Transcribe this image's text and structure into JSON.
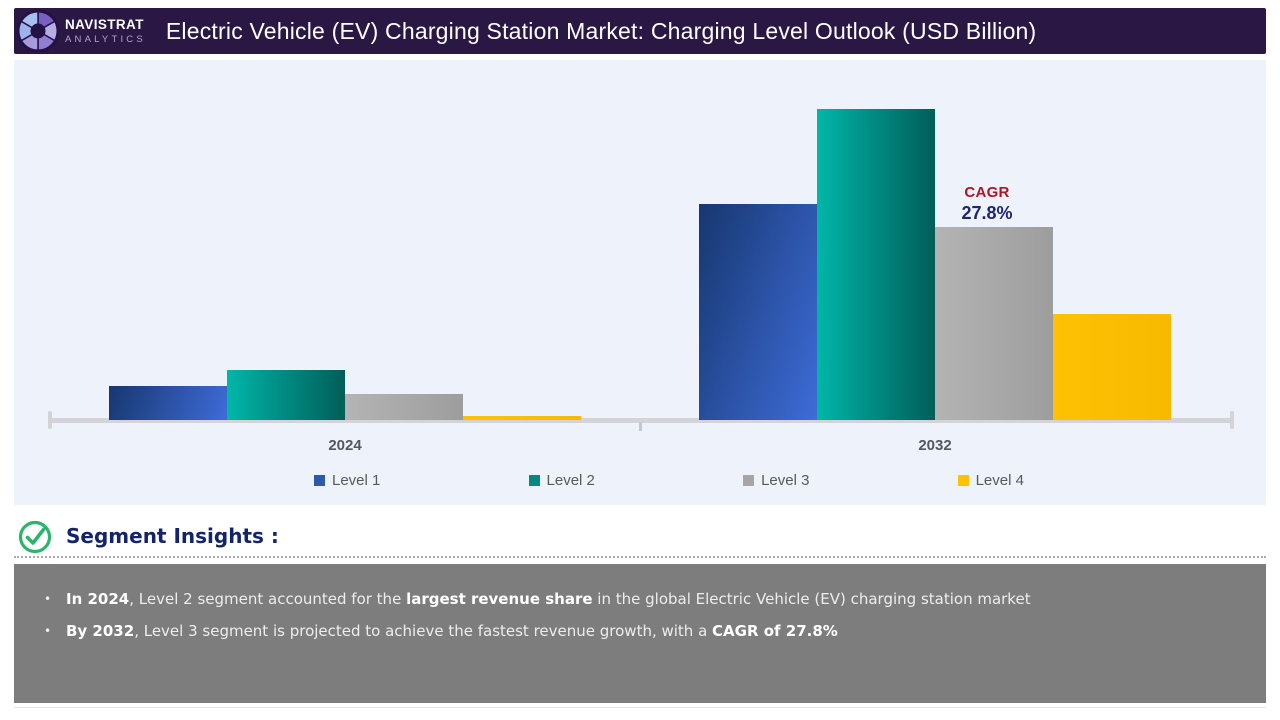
{
  "header": {
    "brand_name": "NAVISTRAT",
    "brand_tagline": "ANALYTICS",
    "title": "Electric Vehicle (EV) Charging Station Market: Charging Level Outlook (USD Billion)",
    "bg_color": "#2b1743"
  },
  "chart_data": {
    "type": "bar",
    "title": "Electric Vehicle (EV) Charging Station Market: Charging Level Outlook (USD Billion)",
    "unit": "USD Billion",
    "categories": [
      "2024",
      "2032"
    ],
    "series": [
      {
        "name": "Level 1",
        "values": [
          6.5,
          41.5
        ],
        "legend_color": "#2e59a8",
        "gradient": "linear-gradient(110deg, #17376f 0%, #3e6cd8 100%)"
      },
      {
        "name": "Level 2",
        "values": [
          9.6,
          59.8
        ],
        "legend_color": "#00897f",
        "gradient": "linear-gradient(90deg, #00b7a8 0%, #00968c 35%, #015e58 100%)"
      },
      {
        "name": "Level 3",
        "values": [
          5.0,
          37.1
        ],
        "legend_color": "#a6a6a6",
        "gradient": "linear-gradient(90deg, #b4b4b4 0%, #9d9d9d 100%)"
      },
      {
        "name": "Level 4",
        "values": [
          0.8,
          20.4
        ],
        "legend_color": "#ffc103",
        "gradient": "linear-gradient(90deg, #ffc103 0%, #f7ba00 100%)"
      }
    ],
    "values_estimated_from_pixels": true,
    "ylim": [
      0,
      62
    ],
    "y_axis_labels_visible": false,
    "grid": false,
    "legend_position": "bottom",
    "annotation": {
      "label": "CAGR",
      "value": "27.8%",
      "applies_to": "Level 3 (2024 to 2032)",
      "label_color": "#b11226",
      "value_color": "#1f2570"
    },
    "panel_bg": "#edf2fb",
    "axis_color": "#d4d4d8"
  },
  "insights": {
    "heading": "Segment Insights :",
    "heading_color": "#14246b",
    "icon_color": "#2bb56b",
    "box_bg": "#7d7d7d",
    "bullet_char": "•",
    "bullets": [
      {
        "parts": [
          {
            "t": "In 2024",
            "b": true
          },
          {
            "t": ", Level 2 segment accounted for the ",
            "b": false
          },
          {
            "t": "largest revenue share",
            "b": true
          },
          {
            "t": " in the global Electric Vehicle (EV) charging station market",
            "b": false
          }
        ]
      },
      {
        "parts": [
          {
            "t": "By 2032",
            "b": true
          },
          {
            "t": ", Level 3 segment is projected to achieve the fastest revenue growth, with a ",
            "b": false
          },
          {
            "t": "CAGR of 27.8%",
            "b": true
          }
        ]
      }
    ]
  }
}
